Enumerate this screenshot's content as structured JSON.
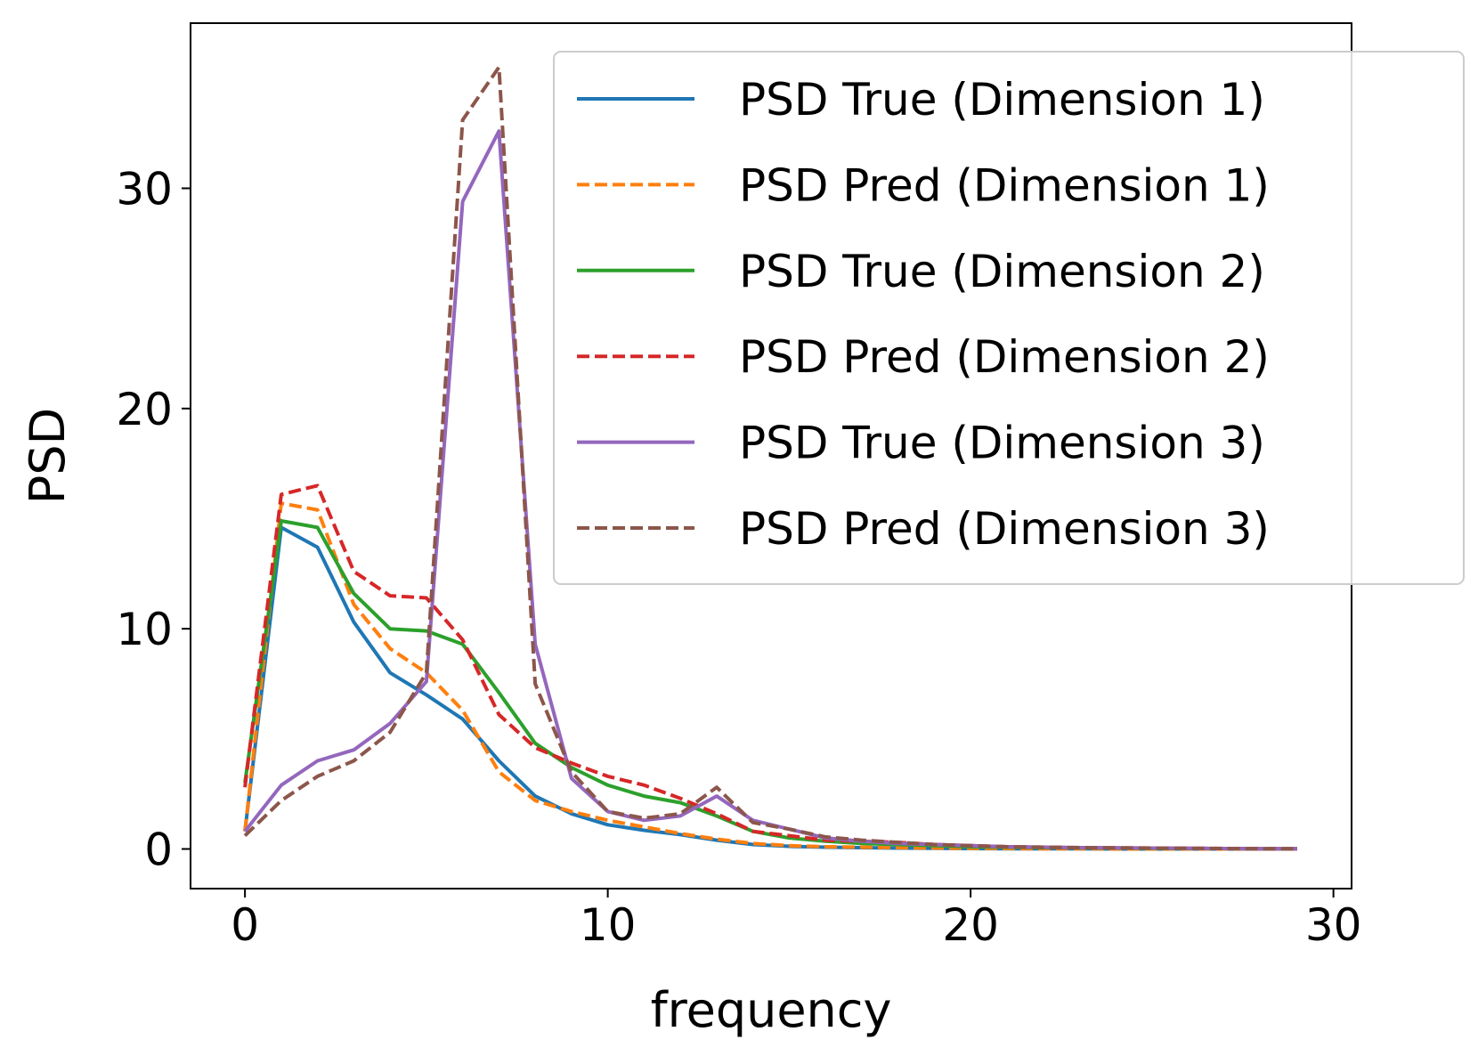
{
  "chart_data": {
    "type": "line",
    "title": "",
    "xlabel": "frequency",
    "ylabel": "PSD",
    "xlim": [
      -1.5,
      30.5
    ],
    "ylim": [
      -1.8,
      37.5
    ],
    "xticks": [
      0,
      10,
      20,
      30
    ],
    "yticks": [
      0,
      10,
      20,
      30
    ],
    "grid": false,
    "legend_position": "top-right",
    "x": [
      0,
      1,
      2,
      3,
      4,
      5,
      6,
      7,
      8,
      9,
      10,
      11,
      12,
      13,
      14,
      15,
      16,
      17,
      18,
      19,
      20,
      21,
      22,
      23,
      24,
      25,
      26,
      27,
      28,
      29
    ],
    "series": [
      {
        "name": "PSD True (Dimension 1)",
        "color": "#1f77b4",
        "style": "solid",
        "values": [
          0.8,
          14.6,
          13.7,
          10.3,
          8.0,
          7.0,
          5.9,
          4.0,
          2.4,
          1.6,
          1.1,
          0.85,
          0.65,
          0.4,
          0.2,
          0.12,
          0.08,
          0.06,
          0.04,
          0.03,
          0.02,
          0.01,
          0.01,
          0.01,
          0,
          0,
          0,
          0,
          0,
          0
        ]
      },
      {
        "name": "PSD Pred (Dimension 1)",
        "color": "#ff7f0e",
        "style": "dashed",
        "values": [
          0.8,
          15.7,
          15.4,
          11.1,
          9.1,
          8.0,
          6.3,
          3.5,
          2.2,
          1.7,
          1.3,
          1.0,
          0.7,
          0.45,
          0.25,
          0.15,
          0.1,
          0.08,
          0.06,
          0.04,
          0.03,
          0.02,
          0.01,
          0.01,
          0,
          0,
          0,
          0,
          0,
          0
        ]
      },
      {
        "name": "PSD True (Dimension 2)",
        "color": "#2ca02c",
        "style": "solid",
        "values": [
          3.0,
          14.9,
          14.6,
          11.6,
          10.0,
          9.9,
          9.3,
          7.1,
          4.8,
          3.7,
          2.9,
          2.4,
          2.1,
          1.5,
          0.8,
          0.5,
          0.35,
          0.25,
          0.2,
          0.15,
          0.1,
          0.08,
          0.06,
          0.05,
          0.04,
          0.03,
          0.02,
          0.02,
          0.01,
          0.01
        ]
      },
      {
        "name": "PSD Pred (Dimension 2)",
        "color": "#d62728",
        "style": "dashed",
        "values": [
          2.8,
          16.1,
          16.5,
          12.6,
          11.5,
          11.4,
          9.5,
          6.1,
          4.6,
          3.9,
          3.3,
          2.9,
          2.3,
          1.6,
          0.8,
          0.6,
          0.4,
          0.35,
          0.3,
          0.2,
          0.15,
          0.1,
          0.08,
          0.06,
          0.05,
          0.04,
          0.03,
          0.02,
          0.01,
          0.01
        ]
      },
      {
        "name": "PSD True (Dimension 3)",
        "color": "#9467bd",
        "style": "solid",
        "values": [
          0.8,
          2.9,
          4.0,
          4.5,
          5.7,
          7.6,
          29.4,
          32.6,
          9.3,
          3.2,
          1.7,
          1.3,
          1.5,
          2.4,
          1.3,
          0.9,
          0.5,
          0.35,
          0.25,
          0.2,
          0.15,
          0.1,
          0.08,
          0.06,
          0.05,
          0.04,
          0.03,
          0.02,
          0.01,
          0.01
        ]
      },
      {
        "name": "PSD Pred (Dimension 3)",
        "color": "#8c564b",
        "style": "dashed",
        "values": [
          0.6,
          2.2,
          3.3,
          4.0,
          5.3,
          8.0,
          33.1,
          35.5,
          7.5,
          3.5,
          1.7,
          1.4,
          1.6,
          2.8,
          1.2,
          0.9,
          0.55,
          0.4,
          0.3,
          0.2,
          0.15,
          0.1,
          0.08,
          0.06,
          0.05,
          0.04,
          0.03,
          0.02,
          0.01,
          0.01
        ]
      }
    ]
  }
}
